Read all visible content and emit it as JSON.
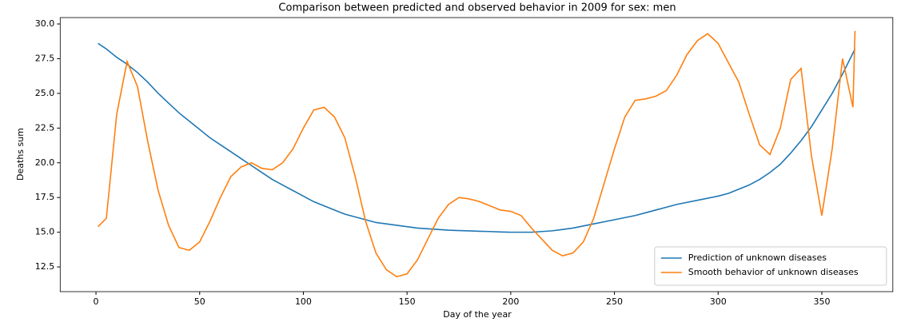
{
  "chart_data": {
    "type": "line",
    "title": "Comparison between predicted and observed behavior in 2009 for sex: men",
    "x_label": "Day of the year",
    "y_label": "Deaths sum",
    "x": [
      1,
      5,
      10,
      15,
      20,
      25,
      30,
      35,
      40,
      45,
      50,
      55,
      60,
      65,
      70,
      75,
      80,
      85,
      90,
      95,
      100,
      105,
      110,
      115,
      120,
      125,
      130,
      135,
      140,
      145,
      150,
      155,
      160,
      165,
      170,
      175,
      180,
      185,
      190,
      195,
      200,
      205,
      210,
      215,
      220,
      225,
      230,
      235,
      240,
      245,
      250,
      255,
      260,
      265,
      270,
      275,
      280,
      285,
      290,
      295,
      300,
      305,
      310,
      315,
      320,
      325,
      330,
      335,
      340,
      345,
      350,
      355,
      360,
      365,
      366
    ],
    "series": [
      {
        "name": "Prediction of unknown diseases",
        "color": "#1f77b4",
        "values": [
          28.6,
          28.2,
          27.6,
          27.1,
          26.5,
          25.8,
          25.0,
          24.3,
          23.6,
          23.0,
          22.4,
          21.8,
          21.3,
          20.8,
          20.3,
          19.8,
          19.3,
          18.8,
          18.4,
          18.0,
          17.6,
          17.2,
          16.9,
          16.6,
          16.3,
          16.1,
          15.9,
          15.7,
          15.6,
          15.5,
          15.4,
          15.3,
          15.25,
          15.2,
          15.15,
          15.12,
          15.1,
          15.07,
          15.05,
          15.02,
          15.0,
          15.0,
          15.0,
          15.05,
          15.1,
          15.2,
          15.3,
          15.45,
          15.6,
          15.75,
          15.9,
          16.05,
          16.2,
          16.4,
          16.6,
          16.8,
          17.0,
          17.15,
          17.3,
          17.45,
          17.6,
          17.8,
          18.1,
          18.4,
          18.8,
          19.3,
          19.9,
          20.7,
          21.6,
          22.6,
          23.8,
          25.0,
          26.4,
          27.9,
          28.2
        ]
      },
      {
        "name": "Smooth behavior of unknown diseases",
        "color": "#ff7f0e",
        "values": [
          15.4,
          16.0,
          23.5,
          27.3,
          25.5,
          21.5,
          18.0,
          15.5,
          13.9,
          13.7,
          14.3,
          15.8,
          17.5,
          19.0,
          19.7,
          20.0,
          19.6,
          19.5,
          20.0,
          21.0,
          22.5,
          23.8,
          24.0,
          23.3,
          21.8,
          19.0,
          15.8,
          13.5,
          12.3,
          11.8,
          12.0,
          13.0,
          14.5,
          16.0,
          17.0,
          17.5,
          17.4,
          17.2,
          16.9,
          16.6,
          16.5,
          16.2,
          15.3,
          14.5,
          13.7,
          13.3,
          13.5,
          14.3,
          16.0,
          18.5,
          21.0,
          23.3,
          24.5,
          24.6,
          24.8,
          25.2,
          26.3,
          27.8,
          28.8,
          29.3,
          28.6,
          27.2,
          25.8,
          23.5,
          21.3,
          20.6,
          22.5,
          26.0,
          26.8,
          20.5,
          16.2,
          21.0,
          27.5,
          24.0,
          29.5
        ]
      }
    ],
    "xlim": [
      -17.25,
      384.25
    ],
    "ylim": [
      10.72,
      30.46
    ],
    "xticks": [
      0,
      50,
      100,
      150,
      200,
      250,
      300,
      350
    ],
    "yticks": [
      12.5,
      {
        "value": 15,
        "label": "15.0"
      },
      17.5,
      {
        "value": 20,
        "label": "20.0"
      },
      22.5,
      {
        "value": 25,
        "label": "25.0"
      },
      27.5,
      {
        "value": 30,
        "label": "30.0"
      }
    ],
    "legend": "lower right"
  }
}
